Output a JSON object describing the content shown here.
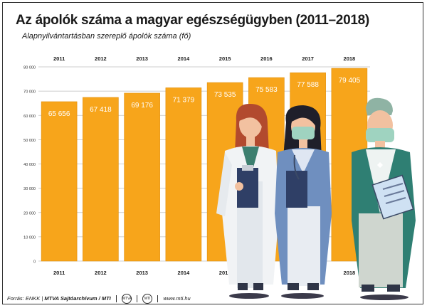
{
  "title": "Az ápolók száma a magyar egészségügyben (2011–2018)",
  "subtitle": "Alapnyilvántartásban szereplő ápolók száma (fő)",
  "footer": {
    "source_prefix": "Forrás: ENKK",
    "source_bold": "MTVA Sajtóarchívum / MTI",
    "logo1": "MTVA",
    "logo2": "MTI",
    "website": "www.mti.hu"
  },
  "colors": {
    "bar": "#f7a51b",
    "bar_edge": "#e08e0a",
    "grid": "#bfbfbf"
  },
  "chart_data": {
    "type": "bar",
    "title": "Az ápolók száma a magyar egészségügyben (2011–2018)",
    "ylabel": "Alapnyilvántartásban szereplő ápolók száma (fő)",
    "categories": [
      "2011",
      "2012",
      "2013",
      "2014",
      "2015",
      "2016",
      "2017",
      "2018"
    ],
    "values": [
      65656,
      67418,
      69176,
      71379,
      73535,
      75583,
      77588,
      79405
    ],
    "value_labels": [
      "65 656",
      "67 418",
      "69 176",
      "71 379",
      "73 535",
      "75 583",
      "77 588",
      "79 405"
    ],
    "yticks": [
      0,
      10000,
      20000,
      30000,
      40000,
      50000,
      60000,
      70000,
      80000
    ],
    "ytick_labels": [
      "0",
      "10 000",
      "20 000",
      "30 000",
      "40 000",
      "50 000",
      "60 000",
      "70 000",
      "80 000"
    ],
    "ylim": [
      0,
      80000
    ],
    "grid": true,
    "legend": "none"
  }
}
